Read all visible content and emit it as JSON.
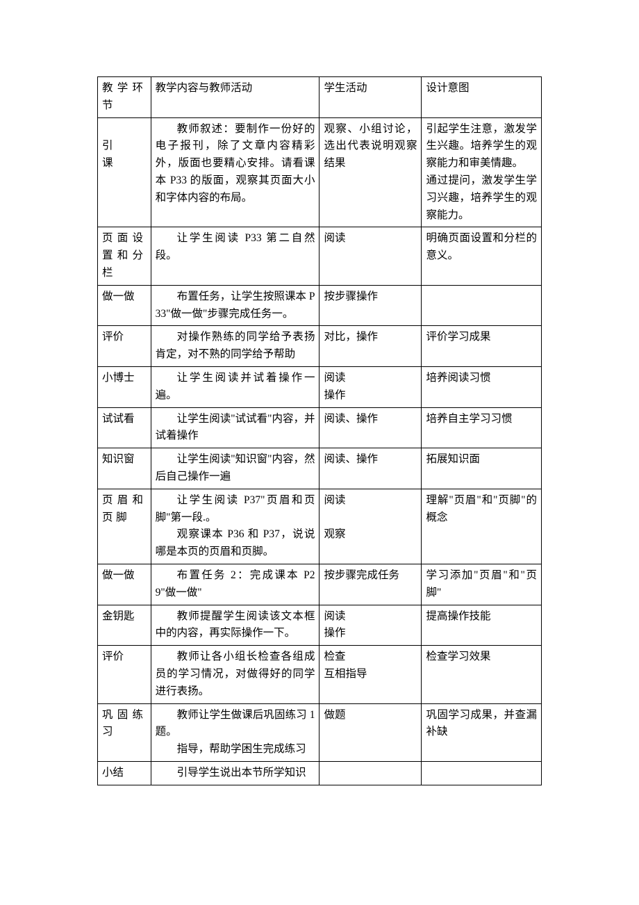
{
  "headers": {
    "c1": "教学环节",
    "c2": "教学内容与教师活动",
    "c3": "学生活动",
    "c4": "设计意图"
  },
  "rows": [
    {
      "c1": "引课",
      "c1_spaced": false,
      "c2": "教师叙述：要制作一份好的电子报刊，除了文章内容精彩外，版面也要精心安排。请看课本 P33 的版面，观察其页面大小和字体内容的布局。",
      "c3": "观察、小组讨论，选出代表说明观察结果",
      "c4": "引起学生注意，激发学生兴趣。培养学生的观察能力和审美情趣。\n通过提问，激发学生学习兴趣，培养学生的观察能力。"
    },
    {
      "c1": "页面设置和分栏",
      "c1_spaced": true,
      "c2": "让学生阅读 P33 第二自然段。",
      "c3": "阅读",
      "c4": "明确页面设置和分栏的意义。"
    },
    {
      "c1": "做一做",
      "c2": "布置任务，让学生按照课本 P33\"做一做\"步骤完成任务一。",
      "c3": "按步骤操作",
      "c4": ""
    },
    {
      "c1": "评价",
      "c2": "对操作熟练的同学给予表扬肯定，对不熟的同学给予帮助",
      "c3": "对比，操作",
      "c4": "评价学习成果"
    },
    {
      "c1": "小博士",
      "c2": "让学生阅读并试着操作一遍。",
      "c3": "阅读\n操作",
      "c4": "培养阅读习惯"
    },
    {
      "c1": "试试看",
      "c2": "让学生阅读\"试试看\"内容，并试着操作",
      "c3": "阅读、操作",
      "c4": "培养自主学习习惯"
    },
    {
      "c1": "知识窗",
      "c2": "让学生阅读\"知识窗\"内容，然后自己操作一遍",
      "c3": "阅读、操作",
      "c4": "拓展知识面"
    },
    {
      "c1": "页眉和页脚",
      "c1_spaced": true,
      "c2a": "让学生阅读 P37\"页眉和页脚\"第一段.。",
      "c2b": "观察课本 P36 和 P37，说说哪是本页的页眉和页脚。",
      "c3": "阅读\n\n观察",
      "c4": "理解\"页眉\"和\"页脚\"的概念"
    },
    {
      "c1": "做一做",
      "c2": "布置任务 2：完成课本 P29\"做一做\"",
      "c3": "按步骤完成任务",
      "c4": "学习添加\"页眉\"和\"页脚\""
    },
    {
      "c1": "金钥匙",
      "c2": "教师提醒学生阅读该文本框中的内容，再实际操作一下。",
      "c3": "阅读\n操作",
      "c4": "提高操作技能"
    },
    {
      "c1": "评价",
      "c2": "教师让各小组长检查各组成员的学习情况，对做得好的同学进行表扬。",
      "c3": "检查\n互相指导",
      "c4": "检查学习效果"
    },
    {
      "c1": "巩固练习",
      "c1_spaced": true,
      "c2a": "教师让学生做课后巩固练习 1 题。",
      "c2b": "指导，帮助学困生完成练习",
      "c3": "做题",
      "c4": "巩固学习成果，并查漏补缺"
    },
    {
      "c1": "小结",
      "c2": "引导学生说出本节所学知识",
      "c3": "",
      "c4": ""
    }
  ]
}
